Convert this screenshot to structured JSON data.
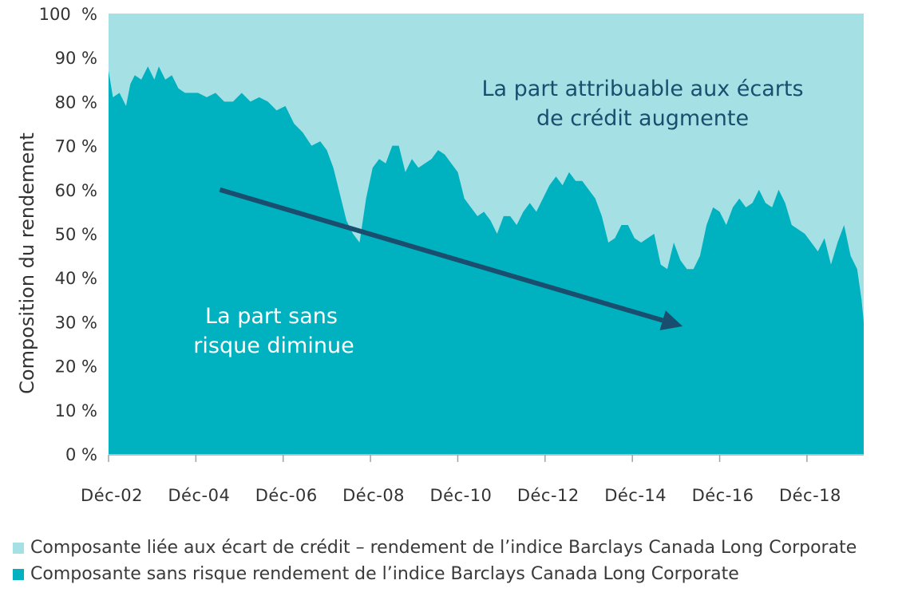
{
  "chart_data": {
    "type": "area",
    "ylabel": "Composition du rendement",
    "yticks": [
      "0 %",
      "10 %",
      "20 %",
      "30 %",
      "40 %",
      "50 %",
      "60 %",
      "70 %",
      "80 %",
      "90 %",
      "100  %"
    ],
    "ylim": [
      0,
      100
    ],
    "xticks": [
      "Déc-02",
      "Déc-04",
      "Déc-06",
      "Déc-08",
      "Déc-10",
      "Déc-12",
      "Déc-14",
      "Déc-16",
      "Déc-18"
    ],
    "xlim": [
      2002.95,
      2020.25
    ],
    "stacked": true,
    "series": [
      {
        "name": "Composante sans risque rendement de l’indice Barclays Canada Long Corporate",
        "color": "#00b2bf",
        "x": [
          2002.95,
          2003.05,
          2003.2,
          2003.35,
          2003.45,
          2003.55,
          2003.7,
          2003.85,
          2004.0,
          2004.1,
          2004.25,
          2004.4,
          2004.55,
          2004.7,
          2004.85,
          2005.0,
          2005.2,
          2005.4,
          2005.6,
          2005.8,
          2006.0,
          2006.2,
          2006.4,
          2006.6,
          2006.8,
          2007.0,
          2007.2,
          2007.4,
          2007.6,
          2007.8,
          2007.95,
          2008.1,
          2008.25,
          2008.4,
          2008.55,
          2008.7,
          2008.85,
          2009.0,
          2009.15,
          2009.3,
          2009.45,
          2009.6,
          2009.75,
          2009.9,
          2010.05,
          2010.2,
          2010.35,
          2010.5,
          2010.65,
          2010.8,
          2010.95,
          2011.1,
          2011.25,
          2011.4,
          2011.55,
          2011.7,
          2011.85,
          2012.0,
          2012.15,
          2012.3,
          2012.45,
          2012.6,
          2012.75,
          2012.9,
          2013.05,
          2013.2,
          2013.35,
          2013.5,
          2013.65,
          2013.8,
          2013.95,
          2014.1,
          2014.25,
          2014.4,
          2014.55,
          2014.7,
          2014.85,
          2015.0,
          2015.15,
          2015.3,
          2015.45,
          2015.6,
          2015.75,
          2015.9,
          2016.05,
          2016.2,
          2016.35,
          2016.5,
          2016.65,
          2016.8,
          2016.95,
          2017.1,
          2017.25,
          2017.4,
          2017.55,
          2017.7,
          2017.85,
          2018.0,
          2018.15,
          2018.3,
          2018.45,
          2018.6,
          2018.75,
          2018.9,
          2019.05,
          2019.2,
          2019.35,
          2019.5,
          2019.65,
          2019.8,
          2019.95,
          2020.1,
          2020.2,
          2020.25
        ],
        "values": [
          87,
          81,
          82,
          79,
          84,
          86,
          85,
          88,
          85,
          88,
          85,
          86,
          83,
          82,
          82,
          82,
          81,
          82,
          80,
          80,
          82,
          80,
          81,
          80,
          78,
          79,
          75,
          73,
          70,
          71,
          69,
          65,
          59,
          53,
          50,
          48,
          58,
          65,
          67,
          66,
          70,
          70,
          64,
          67,
          65,
          66,
          67,
          69,
          68,
          66,
          64,
          58,
          56,
          54,
          55,
          53,
          50,
          54,
          54,
          52,
          55,
          57,
          55,
          58,
          61,
          63,
          61,
          64,
          62,
          62,
          60,
          58,
          54,
          48,
          49,
          52,
          52,
          49,
          48,
          49,
          50,
          43,
          42,
          48,
          44,
          42,
          42,
          45,
          52,
          56,
          55,
          52,
          56,
          58,
          56,
          57,
          60,
          57,
          56,
          60,
          57,
          52,
          51,
          50,
          48,
          46,
          49,
          43,
          48,
          52,
          45,
          42,
          35,
          30
        ]
      },
      {
        "name": "Composante liée aux écart de crédit – rendement de l’indice Barclays Canada Long Corporate",
        "color": "#a5e1e4",
        "note": "remainder to 100 %"
      }
    ],
    "legend_position": "bottom-left",
    "annotations": [
      "La part attribuable aux écarts",
      "de crédit augmente",
      "La part sans",
      "risque diminue"
    ],
    "trend_arrow": {
      "from": [
        2005.5,
        60
      ],
      "to": [
        2016.1,
        29
      ],
      "color": "#1a4e6e"
    },
    "colors": {
      "area_light": "#a5e1e4",
      "area_dark": "#00b2bf",
      "axis": "#9aa5ab",
      "text": "#333333",
      "annotation_dark": "#1a4e6e",
      "annotation_light": "#ffffff"
    }
  },
  "legend": {
    "items": [
      {
        "label": "Composante liée aux écart de crédit – rendement de l’indice Barclays Canada Long Corporate",
        "color": "#a5e1e4"
      },
      {
        "label": "Composante sans risque rendement de l’indice Barclays Canada Long Corporate",
        "color": "#00b2bf"
      }
    ]
  }
}
